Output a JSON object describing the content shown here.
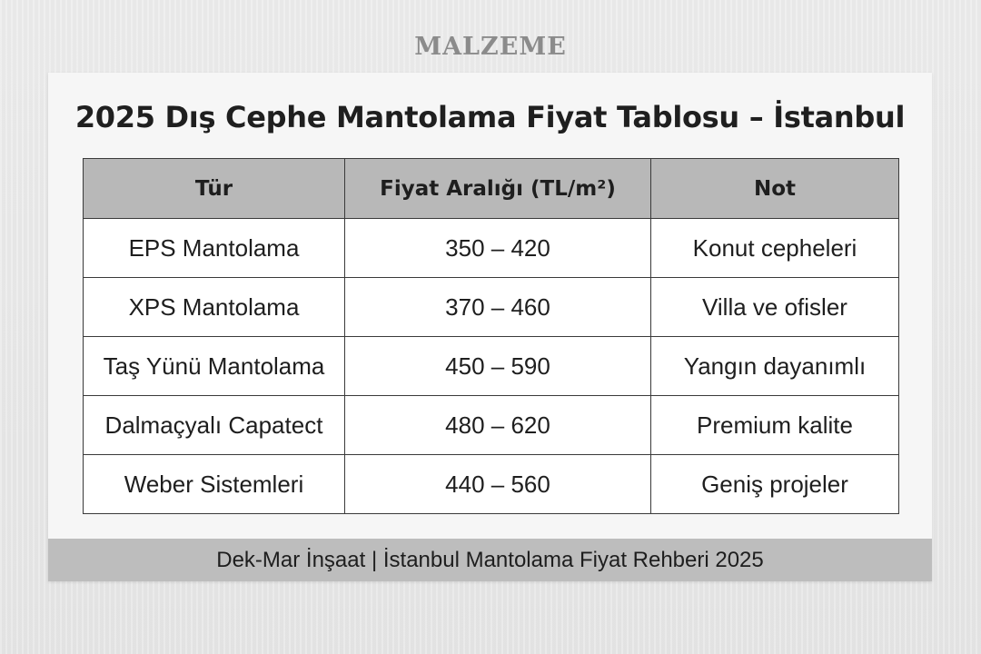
{
  "watermark": "MALZEME",
  "title": "2025 Dış Cephe Mantolama Fiyat Tablosu – İstanbul",
  "table": {
    "headers": [
      "Tür",
      "Fiyat Aralığı (TL/m²)",
      "Not"
    ],
    "rows": [
      [
        "EPS Mantolama",
        "350 – 420",
        "Konut cepheleri"
      ],
      [
        "XPS Mantolama",
        "370 – 460",
        "Villa ve ofisler"
      ],
      [
        "Taş Yünü Mantolama",
        "450 – 590",
        "Yangın dayanımlı"
      ],
      [
        "Dalmaçyalı Capatect",
        "480 – 620",
        "Premium kalite"
      ],
      [
        "Weber Sistemleri",
        "440 – 560",
        "Geniş projeler"
      ]
    ]
  },
  "footer": "Dek-Mar İnşaat | İstanbul Mantolama Fiyat Rehberi 2025"
}
